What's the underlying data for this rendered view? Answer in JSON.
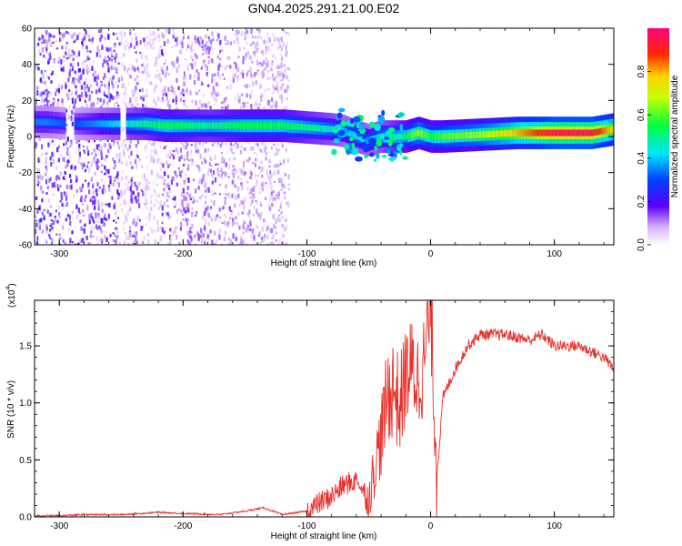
{
  "figure_title": "GN04.2025.291.21.00.E02",
  "chart_data": [
    {
      "type": "heatmap",
      "title": "",
      "xlabel": "Height of straight line (km)",
      "ylabel": "Frequency (Hz)",
      "xlim": [
        -320,
        148
      ],
      "ylim": [
        -60,
        60
      ],
      "xticks": [
        -300,
        -200,
        -100,
        0,
        100
      ],
      "yticks": [
        60,
        40,
        20,
        0,
        -20,
        -40,
        -60
      ],
      "colorbar": {
        "label": "Normalized spectral amplitude",
        "range": [
          0.0,
          1.0
        ],
        "ticks": [
          0.0,
          0.2,
          0.4,
          0.6,
          0.8
        ],
        "colormap": "rainbow (white-purple-blue-cyan-green-yellow-red-magenta)"
      },
      "ridge_x_km": [
        -310,
        -290,
        -260,
        -230,
        -215,
        -180,
        -150,
        -120,
        -100,
        -80,
        -70,
        -60,
        -50,
        -40,
        -30,
        -20,
        -10,
        0,
        10,
        40,
        70,
        100,
        130,
        148
      ],
      "ridge_freq_hz": [
        8,
        7,
        7,
        7,
        6,
        6,
        6,
        6,
        5,
        4,
        3,
        0,
        -2,
        0,
        0,
        0,
        2,
        0,
        0,
        1,
        2,
        2,
        2,
        4
      ],
      "ridge_amplitude": [
        0.3,
        0.25,
        0.35,
        0.45,
        0.5,
        0.45,
        0.5,
        0.5,
        0.45,
        0.4,
        0.35,
        0.4,
        0.35,
        0.4,
        0.45,
        0.5,
        0.6,
        0.5,
        0.55,
        0.6,
        0.75,
        0.9,
        0.9,
        0.7
      ],
      "background_noise_extent_km": [
        -320,
        -115
      ]
    },
    {
      "type": "line",
      "title": "",
      "xlabel": "Height of straight line (km)",
      "ylabel": "SNR (10 * v/v)",
      "y_scale_label": "(x10",
      "y_scale_exponent": "4",
      "xlim": [
        -320,
        148
      ],
      "ylim": [
        0,
        1.9
      ],
      "xticks": [
        -300,
        -200,
        -100,
        0,
        100
      ],
      "yticks": [
        0.0,
        0.5,
        1.0,
        1.5
      ],
      "color": "#e8302a",
      "x": [
        -320,
        -300,
        -280,
        -250,
        -220,
        -200,
        -170,
        -150,
        -135,
        -120,
        -100,
        -90,
        -80,
        -70,
        -60,
        -50,
        -45,
        -40,
        -35,
        -30,
        -25,
        -20,
        -15,
        -10,
        -5,
        0,
        5,
        10,
        20,
        30,
        40,
        60,
        80,
        90,
        100,
        120,
        140,
        148
      ],
      "y": [
        0.01,
        0.01,
        0.02,
        0.02,
        0.04,
        0.03,
        0.02,
        0.05,
        0.08,
        0.02,
        0.05,
        0.12,
        0.18,
        0.28,
        0.32,
        0.15,
        0.45,
        0.7,
        1.05,
        1.15,
        0.95,
        1.25,
        1.3,
        1.2,
        1.35,
        1.9,
        0.35,
        1.05,
        1.3,
        1.5,
        1.6,
        1.6,
        1.55,
        1.6,
        1.5,
        1.5,
        1.4,
        1.3
      ]
    }
  ]
}
